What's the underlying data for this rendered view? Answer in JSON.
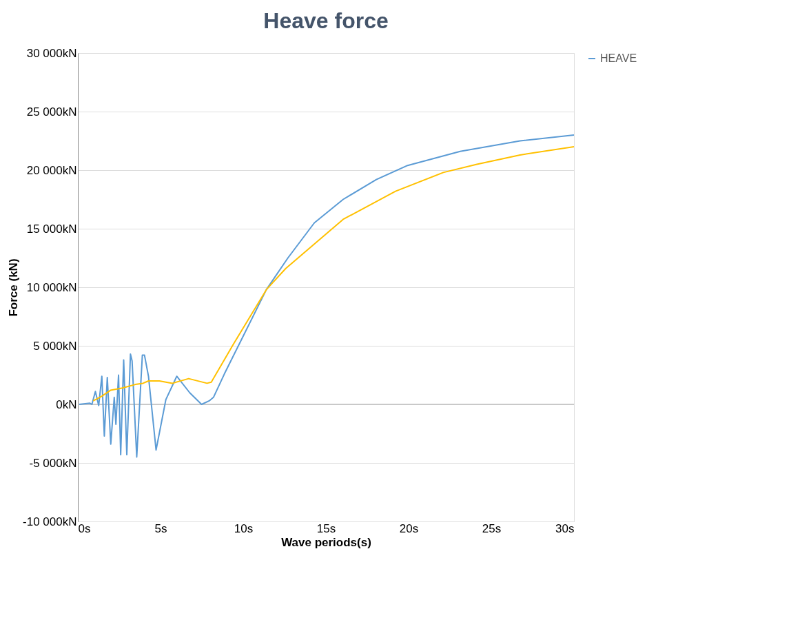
{
  "chart_data": {
    "type": "line",
    "title": "Heave force",
    "xlabel": "Wave periods(s)",
    "ylabel": "Force (kN)",
    "xlim": [
      0,
      30
    ],
    "xticks": [
      {
        "value": 0,
        "label": "0s"
      },
      {
        "value": 5,
        "label": "5s"
      },
      {
        "value": 10,
        "label": "10s"
      },
      {
        "value": 15,
        "label": "15s"
      },
      {
        "value": 20,
        "label": "20s"
      },
      {
        "value": 25,
        "label": "25s"
      },
      {
        "value": 30,
        "label": "30s"
      }
    ],
    "ylim": [
      -10000,
      30000
    ],
    "yticks": [
      {
        "value": -10000,
        "label": "-10 000kN"
      },
      {
        "value": -5000,
        "label": "-5 000kN"
      },
      {
        "value": 0,
        "label": "0kN"
      },
      {
        "value": 5000,
        "label": "5 000kN"
      },
      {
        "value": 10000,
        "label": "10 000kN"
      },
      {
        "value": 15000,
        "label": "15 000kN"
      },
      {
        "value": 20000,
        "label": "20 000kN"
      },
      {
        "value": 25000,
        "label": "25 000kN"
      },
      {
        "value": 30000,
        "label": "30 000kN"
      }
    ],
    "grid": "y",
    "legend": "right",
    "marker": "none",
    "line_style": "solid",
    "series": [
      {
        "name": "HEAVE",
        "color": "#5b9bd5",
        "x": [
          0.08,
          0.73,
          0.85,
          1.06,
          1.26,
          1.45,
          1.6,
          1.78,
          1.99,
          2.2,
          2.3,
          2.46,
          2.59,
          2.77,
          2.96,
          3.18,
          3.28,
          3.56,
          3.9,
          4.03,
          4.27,
          4.73,
          5.32,
          5.98,
          6.76,
          7.48,
          7.94,
          8.2,
          8.86,
          9.67,
          11.4,
          12.7,
          14.3,
          16.04,
          18.05,
          19.94,
          23.12,
          26.74,
          30
        ],
        "values": [
          0,
          100,
          0,
          1100,
          -100,
          2400,
          -2700,
          2300,
          -3400,
          600,
          -1700,
          2500,
          -4300,
          3800,
          -4300,
          4300,
          3700,
          -4500,
          4200,
          4200,
          2400,
          -3900,
          400,
          2400,
          1000,
          0,
          300,
          600,
          2600,
          4900,
          9800,
          12500,
          15500,
          17500,
          19200,
          20400,
          21600,
          22500,
          23000
        ]
      },
      {
        "color": "#ffc000",
        "x": [
          0.93,
          1.45,
          1.97,
          2.69,
          3.48,
          3.94,
          4.27,
          4.93,
          5.72,
          6.7,
          7.81,
          8.07,
          9.39,
          11.4,
          12.57,
          16.04,
          19.21,
          22.1,
          24.13,
          26.74,
          30
        ],
        "values": [
          300,
          700,
          1200,
          1400,
          1700,
          1800,
          2000,
          2000,
          1800,
          2200,
          1800,
          1900,
          5100,
          9800,
          11600,
          15800,
          18200,
          19800,
          20500,
          21300,
          22000
        ]
      }
    ]
  }
}
